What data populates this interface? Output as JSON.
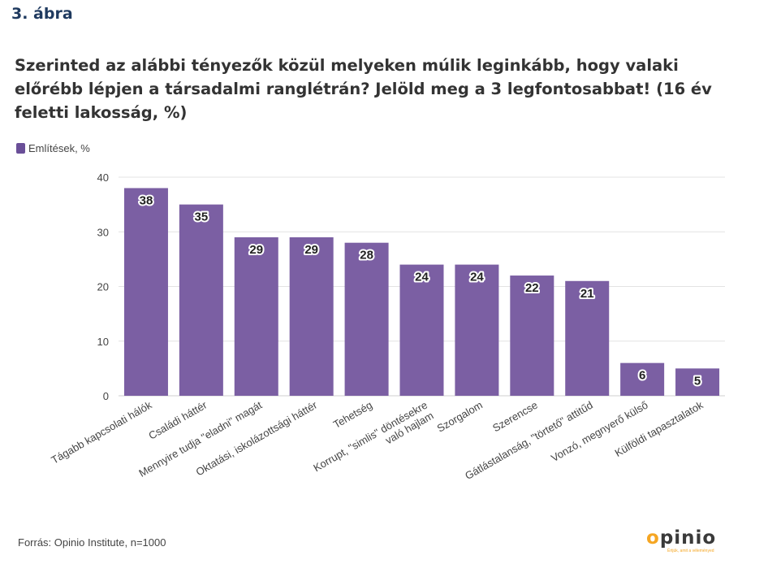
{
  "figure_label": "3. ábra",
  "title": "Szerinted az alábbi tényezők közül melyeken múlik leginkább, hogy valaki előrébb lépjen a társadalmi ranglétrán? Jelöld meg a 3 legfontosabbat! (16 év feletti lakosság, %)",
  "source": "Forrás: Opinio Institute, n=1000",
  "logo": {
    "text": "opinio",
    "tagline": "Értjük, amit a véleményed"
  },
  "colors": {
    "bar": "#7b5fa3",
    "legend": "#6a4f98",
    "grid": "#e3e3e3",
    "text": "#444444"
  },
  "chart_data": {
    "type": "bar",
    "categories": [
      "Tágabb kapcsolati hálók",
      "Családi háttér",
      "Mennyire tudja \"eladni\" magát",
      "Oktatási, iskolázottsági háttér",
      "Tehetség",
      "Korrupt, \"simlis\" döntésekre való hajlam",
      "Szorgalom",
      "Szerencse",
      "Gátlástalanság, \"törtető\" attitűd",
      "Vonzó, megnyerő külső",
      "Külföldi tapasztalatok"
    ],
    "series": [
      {
        "name": "Említések, %",
        "values": [
          38,
          35,
          29,
          29,
          28,
          24,
          24,
          22,
          21,
          6,
          5
        ]
      }
    ],
    "y_ticks": [
      0,
      10,
      20,
      30,
      40
    ],
    "ylim": [
      0,
      40
    ],
    "grid": true,
    "legend_position": "top-left",
    "data_labels": true
  }
}
